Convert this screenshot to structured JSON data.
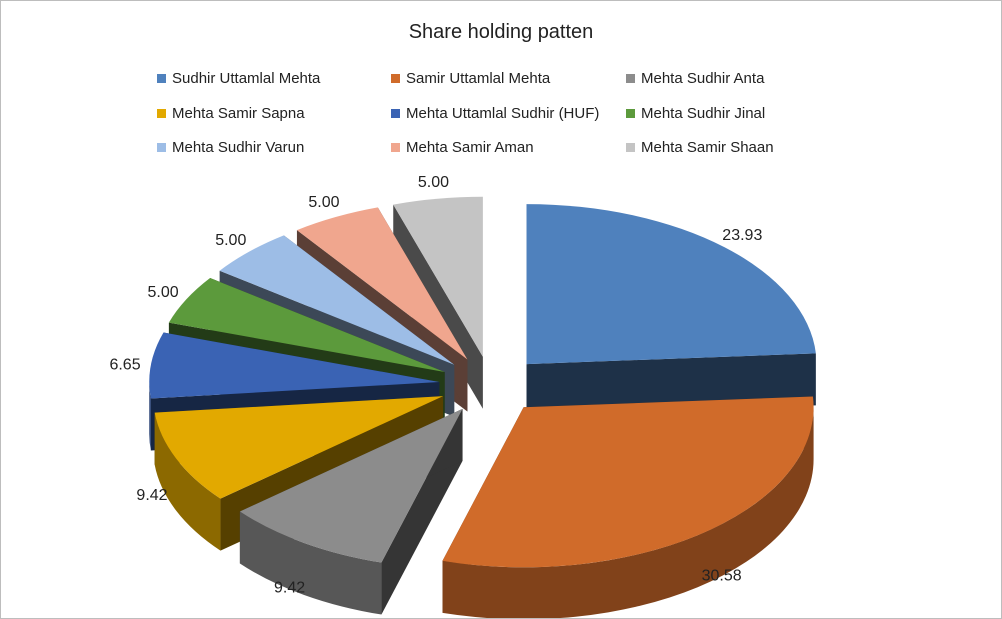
{
  "chart_data": {
    "type": "pie",
    "title": "Share holding patten",
    "legend_position": "top",
    "categories": [
      "Sudhir Uttamlal Mehta",
      "Samir Uttamlal Mehta",
      "Mehta Sudhir Anta",
      "Mehta Samir Sapna",
      "Mehta Uttamlal Sudhir (HUF)",
      "Mehta Sudhir Jinal",
      "Mehta Sudhir Varun",
      "Mehta Samir Aman",
      "Mehta Samir Shaan"
    ],
    "values": [
      23.93,
      30.58,
      9.42,
      9.42,
      6.65,
      5.0,
      5.0,
      5.0,
      5.0
    ],
    "labels": [
      "23.93",
      "30.58",
      "9.42",
      "9.42",
      "6.65",
      "5.00",
      "5.00",
      "5.00",
      "5.00"
    ],
    "colors": [
      "#4f81bd",
      "#d06b2a",
      "#8c8c8c",
      "#e2a900",
      "#3a63b4",
      "#5c9a3c",
      "#9dbde6",
      "#f0a68e",
      "#c4c4c4"
    ]
  }
}
